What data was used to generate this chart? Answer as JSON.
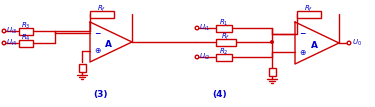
{
  "bg_color": "#ffffff",
  "line_color": "#cc0000",
  "text_color": "#0000cc",
  "fig_width": 3.75,
  "fig_height": 1.07,
  "dpi": 100
}
